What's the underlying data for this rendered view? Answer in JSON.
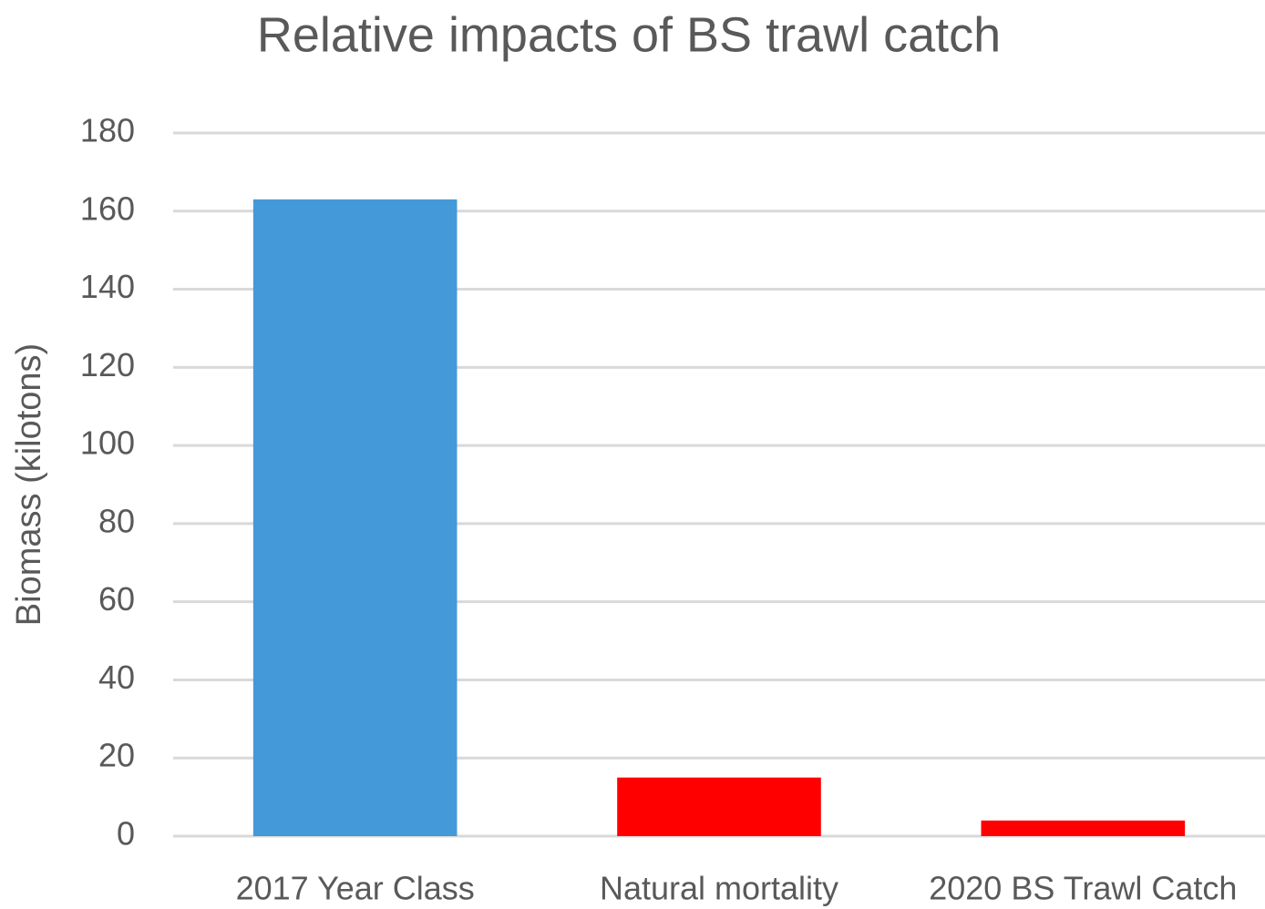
{
  "chart_data": {
    "type": "bar",
    "title": "Relative impacts of BS trawl catch",
    "y_label": "Biomass (kilotons)",
    "categories": [
      "2017 Year Class",
      "Natural mortality",
      "2020 BS Trawl Catch"
    ],
    "values": [
      163,
      15,
      4
    ],
    "colors": [
      "#4499d9",
      "#ff0000",
      "#ff0000"
    ],
    "ylim": [
      0,
      180
    ],
    "yticks": [
      0,
      20,
      40,
      60,
      80,
      100,
      120,
      140,
      160,
      180
    ],
    "grid": true
  }
}
